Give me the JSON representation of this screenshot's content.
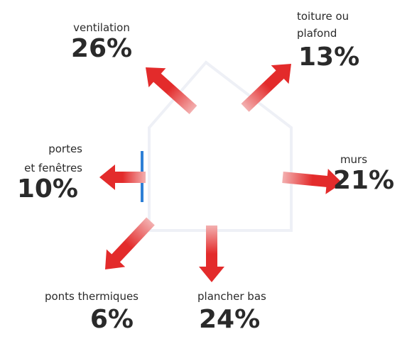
{
  "items": [
    {
      "label": [
        "ventilation"
      ],
      "value": "26%"
    },
    {
      "label": [
        "toiture ou",
        "plafond"
      ],
      "value": "13%"
    },
    {
      "label": [
        "portes",
        "et fenêtres"
      ],
      "value": "10%"
    },
    {
      "label": [
        "murs"
      ],
      "value": "21%"
    },
    {
      "label": [
        "ponts thermiques"
      ],
      "value": "6%"
    },
    {
      "label": [
        "plancher bas"
      ],
      "value": "24%"
    }
  ]
}
